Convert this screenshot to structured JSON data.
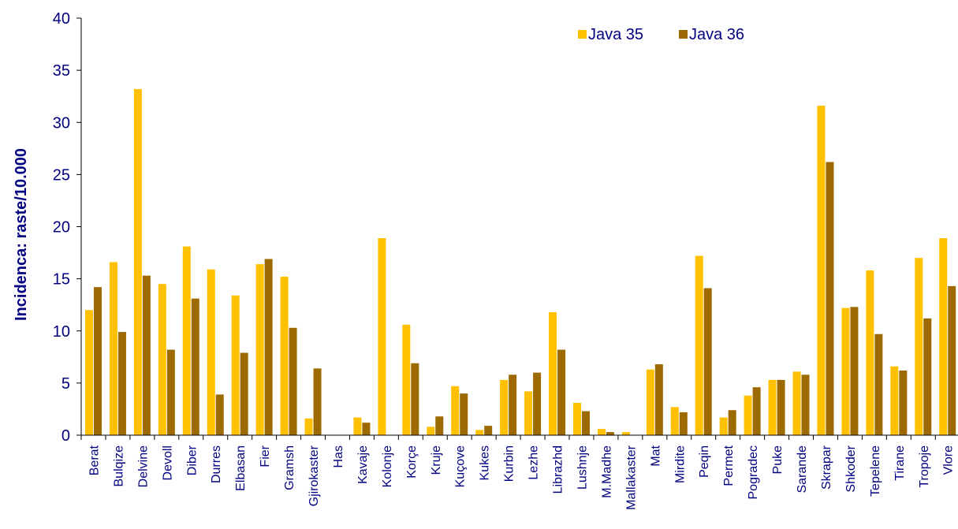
{
  "chart_data": {
    "type": "bar",
    "ylabel": "Incidenca: raste/10.000",
    "xlabel": "",
    "ylim": [
      0,
      40
    ],
    "yticks": [
      0,
      5,
      10,
      15,
      20,
      25,
      30,
      35,
      40
    ],
    "grid": false,
    "legend_position": "top-right",
    "categories": [
      "Berat",
      "Bulqize",
      "Delvine",
      "Devoll",
      "Diber",
      "Durres",
      "Elbasan",
      "Fier",
      "Gramsh",
      "Gjirokaster",
      "Has",
      "Kavaje",
      "Kolonje",
      "Korçe",
      "Kruje",
      "Kuçove",
      "Kukes",
      "Kurbin",
      "Lezhe",
      "Librazhd",
      "Lushnje",
      "M.Madhe",
      "Mallakaster",
      "Mat",
      "Mirdite",
      "Peqin",
      "Permet",
      "Pogradec",
      "Puke",
      "Sarande",
      "Skrapar",
      "Shkoder",
      "Tepelene",
      "Tirane",
      "Tropoje",
      "Vlore"
    ],
    "series": [
      {
        "name": "Java 35",
        "color": "#FFC000",
        "values": [
          12.0,
          16.6,
          33.2,
          14.5,
          18.1,
          15.9,
          13.4,
          16.4,
          15.2,
          1.6,
          0,
          1.7,
          18.9,
          10.6,
          0.8,
          4.7,
          0.5,
          5.3,
          4.2,
          11.8,
          3.1,
          0.6,
          0.3,
          6.3,
          2.7,
          17.2,
          1.7,
          3.8,
          5.3,
          6.1,
          31.6,
          12.2,
          15.8,
          6.6,
          17.0,
          18.9
        ]
      },
      {
        "name": "Java 36",
        "color": "#9C6A00",
        "values": [
          14.2,
          9.9,
          15.3,
          8.2,
          13.1,
          3.9,
          7.9,
          16.9,
          10.3,
          6.4,
          0,
          1.2,
          0,
          6.9,
          1.8,
          4.0,
          0.9,
          5.8,
          6.0,
          8.2,
          2.3,
          0.3,
          0,
          6.8,
          2.2,
          14.1,
          2.4,
          4.6,
          5.3,
          5.8,
          26.2,
          12.3,
          9.7,
          6.2,
          11.2,
          14.3
        ]
      }
    ]
  }
}
